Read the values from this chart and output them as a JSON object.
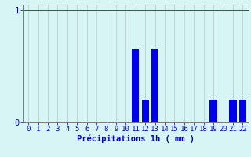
{
  "categories": [
    0,
    1,
    2,
    3,
    4,
    5,
    6,
    7,
    8,
    9,
    10,
    11,
    12,
    13,
    14,
    15,
    16,
    17,
    18,
    19,
    20,
    21,
    22
  ],
  "values": [
    0,
    0,
    0,
    0,
    0,
    0,
    0,
    0,
    0,
    0,
    0,
    0.65,
    0.2,
    0.65,
    0,
    0,
    0,
    0,
    0,
    0.2,
    0,
    0.2,
    0.2
  ],
  "bar_color": "#0000ee",
  "background_color": "#d8f5f5",
  "grid_color": "#b0c8c8",
  "axis_color": "#666666",
  "text_color": "#0000bb",
  "xlabel": "Précipitations 1h ( mm )",
  "ylim": [
    0,
    1.05
  ],
  "yticks": [
    0,
    1
  ],
  "ytick_labels": [
    "0",
    "1"
  ],
  "xlabel_fontsize": 7.5,
  "tick_fontsize": 6.5,
  "red_line_y": 1.0,
  "bar_width": 0.75
}
